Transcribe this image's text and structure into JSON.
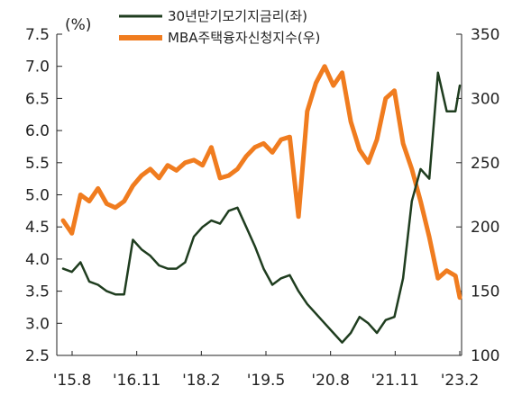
{
  "chart_data": {
    "type": "line",
    "unit_label": "(%)",
    "dual_axis": true,
    "grid": false,
    "legend_placement": "top-center",
    "x_ticks": [
      "'15.8",
      "'16.11",
      "'18.2",
      "'19.5",
      "'20.8",
      "'21.11",
      "'23.2"
    ],
    "y_left": {
      "range": [
        2.5,
        7.5
      ],
      "ticks": [
        "7.5",
        "7.0",
        "6.5",
        "6.0",
        "5.5",
        "5.0",
        "4.5",
        "4.0",
        "3.5",
        "3.0",
        "2.5"
      ]
    },
    "y_right": {
      "range": [
        100,
        350
      ],
      "ticks": [
        "350",
        "300",
        "250",
        "200",
        "150",
        "100"
      ]
    },
    "series": [
      {
        "name": "30년만기모기지금리(좌)",
        "axis": "left",
        "color": "#1f3d1f",
        "x": [
          "2015-08",
          "2015-10",
          "2015-12",
          "2016-02",
          "2016-04",
          "2016-06",
          "2016-08",
          "2016-10",
          "2016-12",
          "2017-02",
          "2017-04",
          "2017-06",
          "2017-08",
          "2017-10",
          "2017-12",
          "2018-02",
          "2018-04",
          "2018-06",
          "2018-08",
          "2018-10",
          "2018-12",
          "2019-02",
          "2019-04",
          "2019-06",
          "2019-08",
          "2019-10",
          "2019-12",
          "2020-02",
          "2020-04",
          "2020-06",
          "2020-08",
          "2020-10",
          "2020-12",
          "2021-02",
          "2021-04",
          "2021-06",
          "2021-08",
          "2021-10",
          "2021-12",
          "2022-02",
          "2022-04",
          "2022-06",
          "2022-08",
          "2022-10",
          "2022-12",
          "2023-02",
          "2023-03"
        ],
        "values": [
          3.85,
          3.8,
          3.95,
          3.65,
          3.6,
          3.5,
          3.45,
          3.45,
          4.3,
          4.15,
          4.05,
          3.9,
          3.85,
          3.85,
          3.95,
          4.35,
          4.5,
          4.6,
          4.55,
          4.75,
          4.8,
          4.5,
          4.2,
          3.85,
          3.6,
          3.7,
          3.75,
          3.5,
          3.3,
          3.15,
          3.0,
          2.85,
          2.7,
          2.85,
          3.1,
          3.0,
          2.85,
          3.05,
          3.1,
          3.7,
          4.9,
          5.4,
          5.25,
          6.9,
          6.3,
          6.3,
          6.7
        ]
      },
      {
        "name": "MBA주택융자신청지수(우)",
        "axis": "right",
        "color": "#f07c1f",
        "x": [
          "2015-08",
          "2015-10",
          "2015-12",
          "2016-02",
          "2016-04",
          "2016-06",
          "2016-08",
          "2016-10",
          "2016-12",
          "2017-02",
          "2017-04",
          "2017-06",
          "2017-08",
          "2017-10",
          "2017-12",
          "2018-02",
          "2018-04",
          "2018-06",
          "2018-08",
          "2018-10",
          "2018-12",
          "2019-02",
          "2019-04",
          "2019-06",
          "2019-08",
          "2019-10",
          "2019-12",
          "2020-02",
          "2020-04",
          "2020-06",
          "2020-08",
          "2020-10",
          "2020-12",
          "2021-02",
          "2021-04",
          "2021-06",
          "2021-08",
          "2021-10",
          "2021-12",
          "2022-02",
          "2022-04",
          "2022-06",
          "2022-08",
          "2022-10",
          "2022-12",
          "2023-02",
          "2023-03"
        ],
        "values": [
          205,
          195,
          225,
          220,
          230,
          218,
          215,
          220,
          232,
          240,
          245,
          238,
          248,
          244,
          250,
          252,
          248,
          262,
          238,
          240,
          245,
          255,
          262,
          265,
          258,
          268,
          270,
          208,
          290,
          312,
          325,
          310,
          320,
          282,
          260,
          250,
          268,
          300,
          306,
          265,
          245,
          220,
          192,
          160,
          166,
          162,
          145
        ]
      }
    ]
  }
}
